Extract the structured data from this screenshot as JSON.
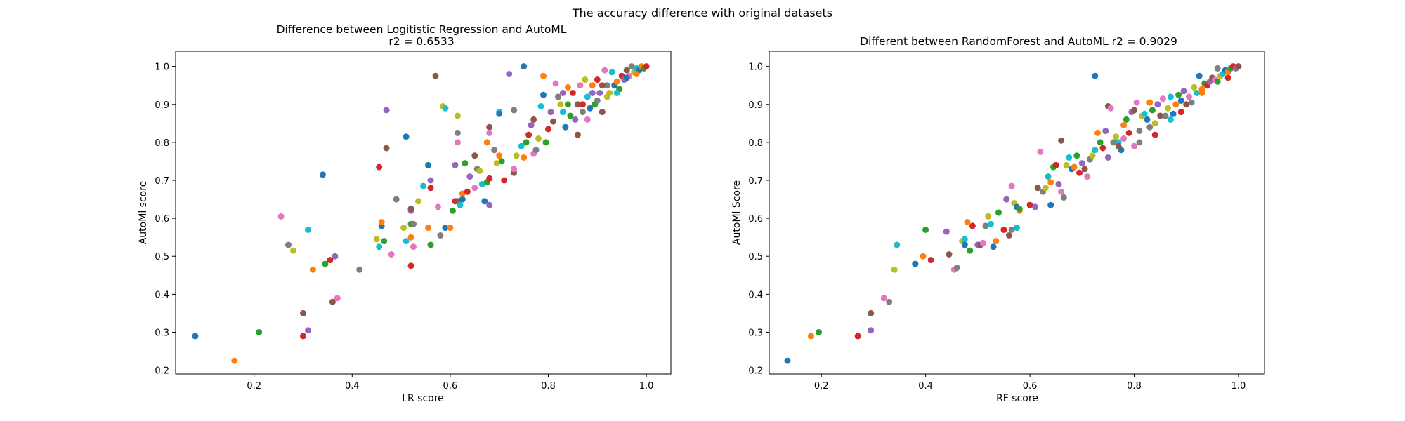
{
  "figure": {
    "suptitle": "The accuracy difference with original datasets"
  },
  "palette": [
    "#1f77b4",
    "#ff7f0e",
    "#2ca02c",
    "#d62728",
    "#9467bd",
    "#8c564b",
    "#e377c2",
    "#7f7f7f",
    "#bcbd22",
    "#17becf"
  ],
  "chart_data": [
    {
      "type": "scatter",
      "title": "Difference between Logitistic Regression and AutoML",
      "subtitle": "r2 = 0.6533",
      "xlabel": "LR score",
      "ylabel": "AutoMl score",
      "xlim": [
        0.04,
        1.05
      ],
      "ylim": [
        0.19,
        1.04
      ],
      "xticks": [
        "0.2",
        "0.4",
        "0.6",
        "0.8",
        "1.0"
      ],
      "yticks": [
        "0.2",
        "0.3",
        "0.4",
        "0.5",
        "0.6",
        "0.7",
        "0.8",
        "0.9",
        "1.0"
      ],
      "grid": false,
      "points": [
        [
          0.08,
          0.29
        ],
        [
          0.16,
          0.225
        ],
        [
          0.21,
          0.3
        ],
        [
          0.3,
          0.29
        ],
        [
          0.31,
          0.305
        ],
        [
          0.3,
          0.35
        ],
        [
          0.255,
          0.605
        ],
        [
          0.27,
          0.53
        ],
        [
          0.28,
          0.515
        ],
        [
          0.31,
          0.57
        ],
        [
          0.34,
          0.715
        ],
        [
          0.32,
          0.465
        ],
        [
          0.345,
          0.48
        ],
        [
          0.355,
          0.49
        ],
        [
          0.365,
          0.5
        ],
        [
          0.36,
          0.38
        ],
        [
          0.37,
          0.39
        ],
        [
          0.415,
          0.465
        ],
        [
          0.45,
          0.545
        ],
        [
          0.455,
          0.525
        ],
        [
          0.46,
          0.58
        ],
        [
          0.46,
          0.59
        ],
        [
          0.465,
          0.54
        ],
        [
          0.455,
          0.735
        ],
        [
          0.47,
          0.885
        ],
        [
          0.47,
          0.785
        ],
        [
          0.48,
          0.505
        ],
        [
          0.49,
          0.65
        ],
        [
          0.505,
          0.575
        ],
        [
          0.51,
          0.54
        ],
        [
          0.51,
          0.815
        ],
        [
          0.52,
          0.55
        ],
        [
          0.52,
          0.585
        ],
        [
          0.52,
          0.475
        ],
        [
          0.52,
          0.62
        ],
        [
          0.52,
          0.625
        ],
        [
          0.525,
          0.525
        ],
        [
          0.525,
          0.585
        ],
        [
          0.535,
          0.645
        ],
        [
          0.545,
          0.685
        ],
        [
          0.555,
          0.74
        ],
        [
          0.555,
          0.575
        ],
        [
          0.56,
          0.53
        ],
        [
          0.56,
          0.68
        ],
        [
          0.56,
          0.7
        ],
        [
          0.57,
          0.975
        ],
        [
          0.575,
          0.63
        ],
        [
          0.58,
          0.555
        ],
        [
          0.585,
          0.895
        ],
        [
          0.59,
          0.89
        ],
        [
          0.59,
          0.575
        ],
        [
          0.6,
          0.575
        ],
        [
          0.605,
          0.62
        ],
        [
          0.61,
          0.645
        ],
        [
          0.61,
          0.74
        ],
        [
          0.615,
          0.645
        ],
        [
          0.615,
          0.8
        ],
        [
          0.615,
          0.825
        ],
        [
          0.615,
          0.87
        ],
        [
          0.62,
          0.635
        ],
        [
          0.625,
          0.65
        ],
        [
          0.625,
          0.665
        ],
        [
          0.63,
          0.745
        ],
        [
          0.635,
          0.67
        ],
        [
          0.64,
          0.71
        ],
        [
          0.65,
          0.765
        ],
        [
          0.65,
          0.68
        ],
        [
          0.655,
          0.73
        ],
        [
          0.66,
          0.725
        ],
        [
          0.665,
          0.69
        ],
        [
          0.67,
          0.645
        ],
        [
          0.675,
          0.8
        ],
        [
          0.675,
          0.695
        ],
        [
          0.68,
          0.705
        ],
        [
          0.68,
          0.635
        ],
        [
          0.68,
          0.84
        ],
        [
          0.68,
          0.825
        ],
        [
          0.69,
          0.78
        ],
        [
          0.695,
          0.745
        ],
        [
          0.7,
          0.88
        ],
        [
          0.7,
          0.875
        ],
        [
          0.7,
          0.765
        ],
        [
          0.705,
          0.75
        ],
        [
          0.71,
          0.7
        ],
        [
          0.72,
          0.98
        ],
        [
          0.73,
          0.72
        ],
        [
          0.73,
          0.73
        ],
        [
          0.73,
          0.885
        ],
        [
          0.735,
          0.765
        ],
        [
          0.745,
          0.79
        ],
        [
          0.75,
          1.0
        ],
        [
          0.75,
          0.76
        ],
        [
          0.755,
          0.8
        ],
        [
          0.76,
          0.82
        ],
        [
          0.765,
          0.845
        ],
        [
          0.77,
          0.86
        ],
        [
          0.77,
          0.77
        ],
        [
          0.775,
          0.78
        ],
        [
          0.78,
          0.81
        ],
        [
          0.785,
          0.895
        ],
        [
          0.79,
          0.925
        ],
        [
          0.79,
          0.975
        ],
        [
          0.795,
          0.8
        ],
        [
          0.8,
          0.835
        ],
        [
          0.805,
          0.88
        ],
        [
          0.81,
          0.855
        ],
        [
          0.815,
          0.955
        ],
        [
          0.82,
          0.92
        ],
        [
          0.825,
          0.9
        ],
        [
          0.83,
          0.88
        ],
        [
          0.835,
          0.84
        ],
        [
          0.84,
          0.945
        ],
        [
          0.845,
          0.87
        ],
        [
          0.85,
          0.93
        ],
        [
          0.855,
          0.86
        ],
        [
          0.86,
          0.9
        ],
        [
          0.865,
          0.95
        ],
        [
          0.87,
          0.88
        ],
        [
          0.875,
          0.965
        ],
        [
          0.88,
          0.92
        ],
        [
          0.885,
          0.89
        ],
        [
          0.89,
          0.95
        ],
        [
          0.895,
          0.9
        ],
        [
          0.9,
          0.965
        ],
        [
          0.905,
          0.93
        ],
        [
          0.91,
          0.88
        ],
        [
          0.915,
          0.99
        ],
        [
          0.92,
          0.95
        ],
        [
          0.925,
          0.93
        ],
        [
          0.93,
          0.985
        ],
        [
          0.935,
          0.95
        ],
        [
          0.94,
          0.96
        ],
        [
          0.945,
          0.94
        ],
        [
          0.95,
          0.975
        ],
        [
          0.955,
          0.965
        ],
        [
          0.96,
          0.99
        ],
        [
          0.965,
          0.975
        ],
        [
          0.97,
          1.0
        ],
        [
          0.975,
          0.985
        ],
        [
          0.98,
          0.995
        ],
        [
          0.985,
          0.99
        ],
        [
          0.99,
          1.0
        ],
        [
          0.995,
          0.995
        ],
        [
          1.0,
          1.0
        ],
        [
          0.83,
          0.93
        ],
        [
          0.86,
          0.82
        ],
        [
          0.88,
          0.86
        ],
        [
          0.9,
          0.91
        ],
        [
          0.92,
          0.92
        ],
        [
          0.94,
          0.93
        ],
        [
          0.96,
          0.97
        ],
        [
          0.98,
          0.98
        ],
        [
          0.84,
          0.9
        ],
        [
          0.87,
          0.9
        ],
        [
          0.89,
          0.93
        ],
        [
          0.91,
          0.95
        ]
      ]
    },
    {
      "type": "scatter",
      "title": "Different between RandomForest and AutoML r2 = 0.9029",
      "xlabel": "RF score",
      "ylabel": "AutoMl Score",
      "xlim": [
        0.1,
        1.05
      ],
      "ylim": [
        0.19,
        1.04
      ],
      "xticks": [
        "0.2",
        "0.4",
        "0.6",
        "0.8",
        "1.0"
      ],
      "yticks": [
        "0.2",
        "0.3",
        "0.4",
        "0.5",
        "0.6",
        "0.7",
        "0.8",
        "0.9",
        "1.0"
      ],
      "grid": false,
      "points": [
        [
          0.135,
          0.225
        ],
        [
          0.18,
          0.29
        ],
        [
          0.195,
          0.3
        ],
        [
          0.27,
          0.29
        ],
        [
          0.295,
          0.305
        ],
        [
          0.295,
          0.35
        ],
        [
          0.32,
          0.39
        ],
        [
          0.33,
          0.38
        ],
        [
          0.34,
          0.465
        ],
        [
          0.345,
          0.53
        ],
        [
          0.38,
          0.48
        ],
        [
          0.395,
          0.5
        ],
        [
          0.4,
          0.57
        ],
        [
          0.41,
          0.49
        ],
        [
          0.44,
          0.565
        ],
        [
          0.445,
          0.505
        ],
        [
          0.455,
          0.465
        ],
        [
          0.46,
          0.47
        ],
        [
          0.47,
          0.54
        ],
        [
          0.475,
          0.545
        ],
        [
          0.475,
          0.53
        ],
        [
          0.48,
          0.59
        ],
        [
          0.485,
          0.515
        ],
        [
          0.49,
          0.58
        ],
        [
          0.5,
          0.53
        ],
        [
          0.505,
          0.53
        ],
        [
          0.51,
          0.535
        ],
        [
          0.515,
          0.58
        ],
        [
          0.52,
          0.605
        ],
        [
          0.525,
          0.585
        ],
        [
          0.53,
          0.525
        ],
        [
          0.535,
          0.54
        ],
        [
          0.54,
          0.615
        ],
        [
          0.55,
          0.57
        ],
        [
          0.555,
          0.65
        ],
        [
          0.56,
          0.555
        ],
        [
          0.565,
          0.685
        ],
        [
          0.565,
          0.57
        ],
        [
          0.57,
          0.64
        ],
        [
          0.575,
          0.575
        ],
        [
          0.575,
          0.63
        ],
        [
          0.58,
          0.62
        ],
        [
          0.58,
          0.625
        ],
        [
          0.6,
          0.635
        ],
        [
          0.61,
          0.63
        ],
        [
          0.615,
          0.68
        ],
        [
          0.62,
          0.775
        ],
        [
          0.625,
          0.67
        ],
        [
          0.63,
          0.68
        ],
        [
          0.635,
          0.71
        ],
        [
          0.64,
          0.635
        ],
        [
          0.64,
          0.695
        ],
        [
          0.645,
          0.735
        ],
        [
          0.65,
          0.74
        ],
        [
          0.655,
          0.69
        ],
        [
          0.66,
          0.805
        ],
        [
          0.66,
          0.67
        ],
        [
          0.665,
          0.655
        ],
        [
          0.67,
          0.74
        ],
        [
          0.675,
          0.76
        ],
        [
          0.68,
          0.73
        ],
        [
          0.685,
          0.735
        ],
        [
          0.69,
          0.765
        ],
        [
          0.695,
          0.72
        ],
        [
          0.7,
          0.745
        ],
        [
          0.705,
          0.73
        ],
        [
          0.71,
          0.71
        ],
        [
          0.715,
          0.755
        ],
        [
          0.72,
          0.765
        ],
        [
          0.725,
          0.78
        ],
        [
          0.725,
          0.975
        ],
        [
          0.73,
          0.825
        ],
        [
          0.735,
          0.8
        ],
        [
          0.74,
          0.785
        ],
        [
          0.745,
          0.83
        ],
        [
          0.75,
          0.895
        ],
        [
          0.755,
          0.89
        ],
        [
          0.76,
          0.8
        ],
        [
          0.765,
          0.815
        ],
        [
          0.77,
          0.8
        ],
        [
          0.775,
          0.78
        ],
        [
          0.78,
          0.845
        ],
        [
          0.785,
          0.86
        ],
        [
          0.79,
          0.825
        ],
        [
          0.795,
          0.88
        ],
        [
          0.8,
          0.885
        ],
        [
          0.805,
          0.905
        ],
        [
          0.81,
          0.8
        ],
        [
          0.815,
          0.87
        ],
        [
          0.82,
          0.875
        ],
        [
          0.825,
          0.86
        ],
        [
          0.83,
          0.905
        ],
        [
          0.835,
          0.885
        ],
        [
          0.84,
          0.82
        ],
        [
          0.845,
          0.9
        ],
        [
          0.85,
          0.87
        ],
        [
          0.855,
          0.915
        ],
        [
          0.86,
          0.87
        ],
        [
          0.865,
          0.89
        ],
        [
          0.87,
          0.92
        ],
        [
          0.875,
          0.875
        ],
        [
          0.88,
          0.9
        ],
        [
          0.885,
          0.925
        ],
        [
          0.89,
          0.88
        ],
        [
          0.895,
          0.935
        ],
        [
          0.9,
          0.9
        ],
        [
          0.905,
          0.92
        ],
        [
          0.91,
          0.905
        ],
        [
          0.915,
          0.945
        ],
        [
          0.92,
          0.93
        ],
        [
          0.925,
          0.975
        ],
        [
          0.93,
          0.94
        ],
        [
          0.935,
          0.955
        ],
        [
          0.94,
          0.95
        ],
        [
          0.945,
          0.96
        ],
        [
          0.95,
          0.97
        ],
        [
          0.955,
          0.965
        ],
        [
          0.96,
          0.995
        ],
        [
          0.965,
          0.975
        ],
        [
          0.97,
          0.98
        ],
        [
          0.975,
          0.99
        ],
        [
          0.98,
          0.985
        ],
        [
          0.985,
          0.995
        ],
        [
          0.99,
          1.0
        ],
        [
          0.995,
          0.995
        ],
        [
          1.0,
          1.0
        ],
        [
          0.78,
          0.81
        ],
        [
          0.81,
          0.83
        ],
        [
          0.84,
          0.85
        ],
        [
          0.87,
          0.86
        ],
        [
          0.89,
          0.91
        ],
        [
          0.93,
          0.93
        ],
        [
          0.96,
          0.96
        ],
        [
          0.98,
          0.97
        ],
        [
          0.75,
          0.76
        ],
        [
          0.77,
          0.79
        ],
        [
          0.8,
          0.79
        ],
        [
          0.83,
          0.84
        ]
      ]
    }
  ]
}
